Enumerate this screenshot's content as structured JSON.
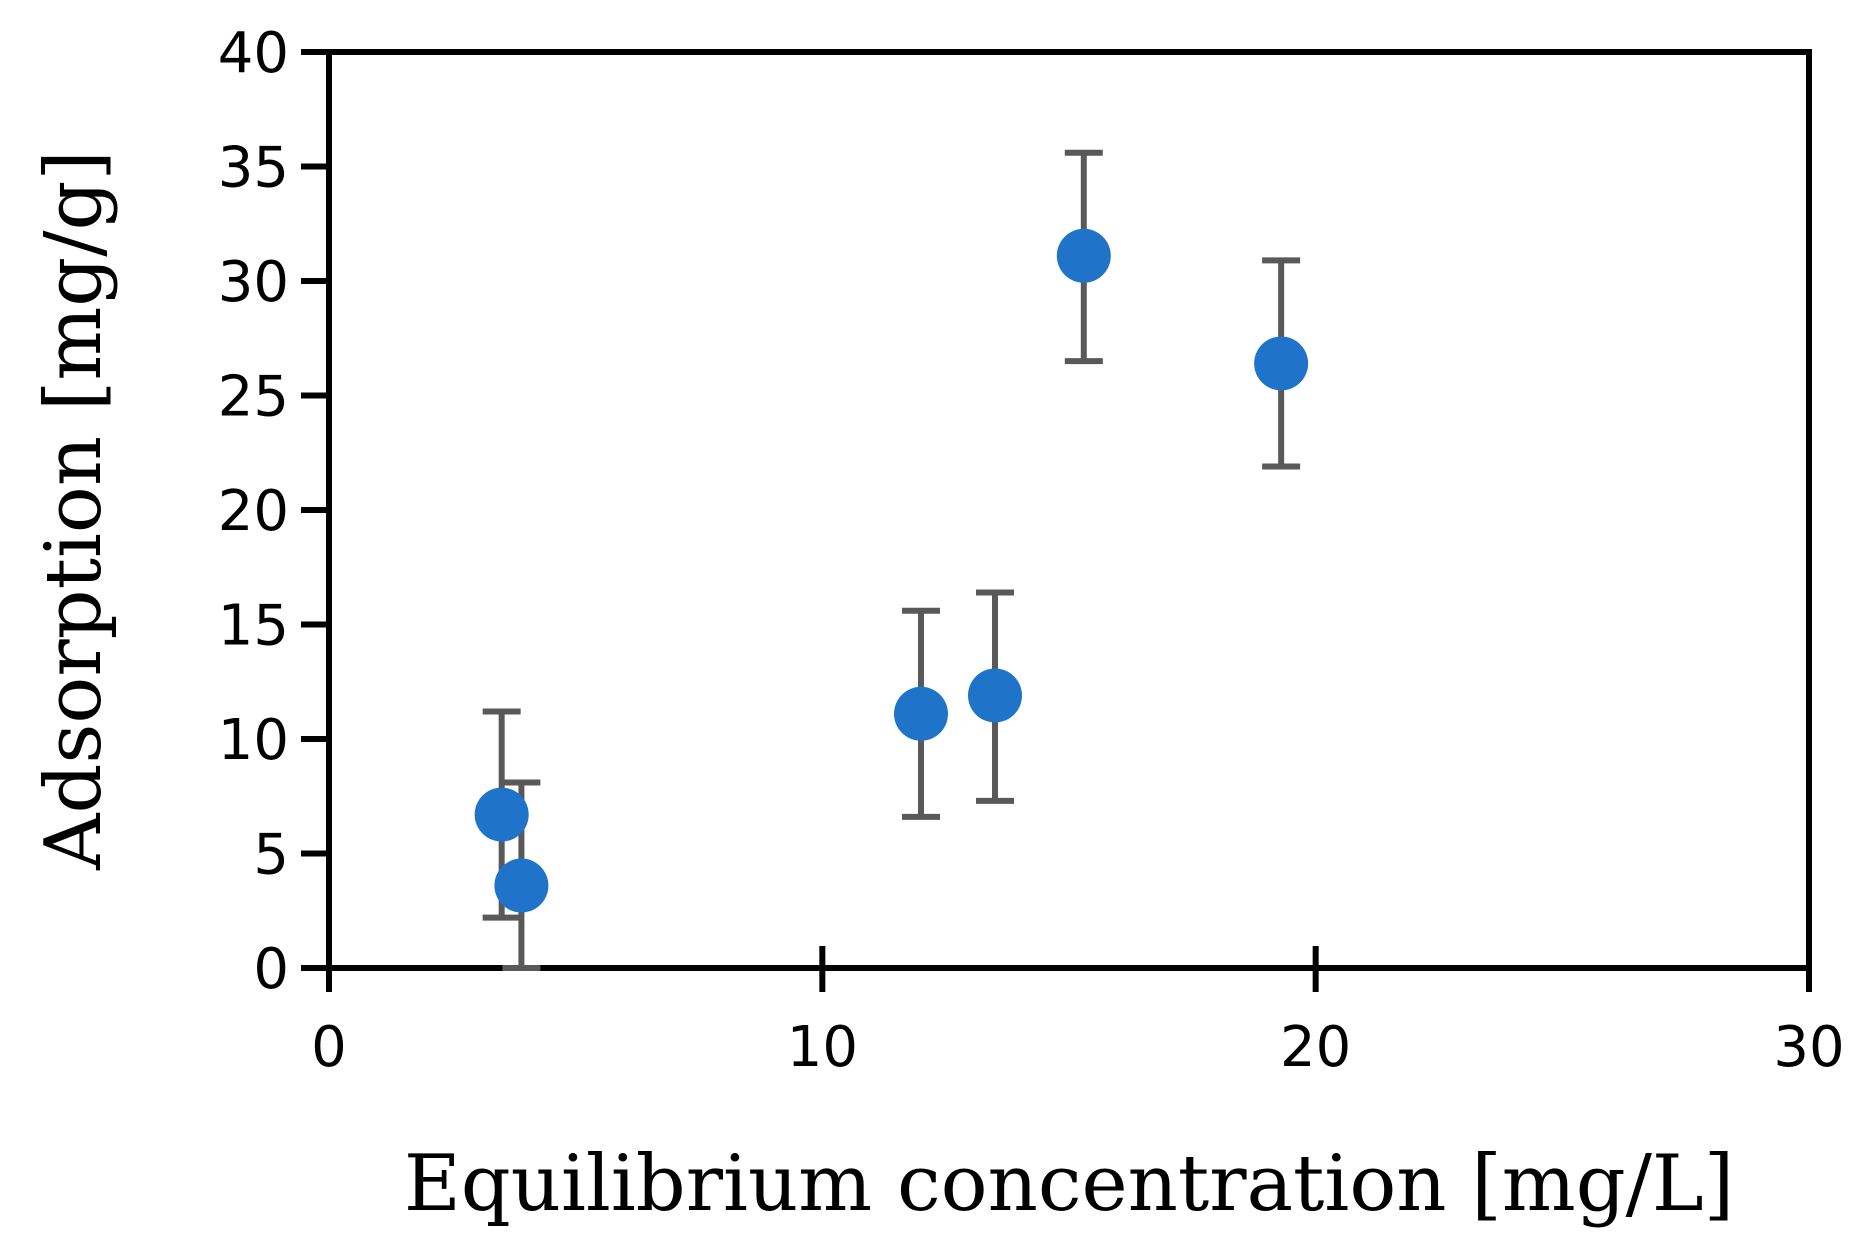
{
  "chart_data": {
    "type": "scatter",
    "title": "",
    "xlabel": "Equilibrium concentration [mg/L]",
    "ylabel": "Adsorption [mg/g]",
    "xlim": [
      0,
      30
    ],
    "ylim": [
      0,
      40
    ],
    "xticks": [
      0,
      10,
      20,
      30
    ],
    "yticks": [
      0,
      5,
      10,
      15,
      20,
      25,
      30,
      35,
      40
    ],
    "grid": false,
    "legend": "none",
    "series": [
      {
        "points": [
          {
            "x": 3.5,
            "y": 6.7,
            "err_low": 4.5,
            "err_high": 4.5
          },
          {
            "x": 3.9,
            "y": 3.6,
            "err_low": 3.6,
            "err_high": 4.5
          },
          {
            "x": 12.0,
            "y": 11.1,
            "err_low": 4.5,
            "err_high": 4.5
          },
          {
            "x": 13.5,
            "y": 11.9,
            "err_low": 4.6,
            "err_high": 4.5
          },
          {
            "x": 15.3,
            "y": 31.1,
            "err_low": 4.6,
            "err_high": 4.5
          },
          {
            "x": 19.3,
            "y": 26.4,
            "err_low": 4.5,
            "err_high": 4.5
          }
        ]
      }
    ]
  },
  "colors": {
    "marker": "#1f73c9",
    "error_bar": "#595959",
    "axis": "#000000"
  }
}
